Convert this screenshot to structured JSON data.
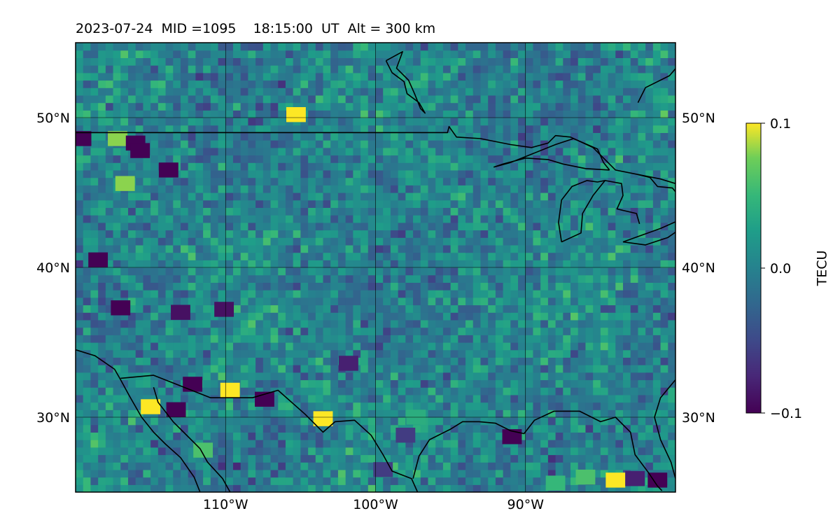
{
  "title": "2023-07-24  MID =1095    18:15:00  UT  Alt = 300 km",
  "map": {
    "lon_range": [
      -120,
      -80
    ],
    "lat_range": [
      25,
      55
    ],
    "lon_ticks": [
      {
        "value": -110,
        "label": "110°W"
      },
      {
        "value": -100,
        "label": "100°W"
      },
      {
        "value": -90,
        "label": "90°W"
      }
    ],
    "lat_ticks": [
      {
        "value": 30,
        "label": "30°N"
      },
      {
        "value": 40,
        "label": "40°N"
      },
      {
        "value": 50,
        "label": "50°N"
      }
    ],
    "grid": true,
    "colormap": "viridis"
  },
  "colorbar": {
    "label": "TECU",
    "min": -0.1,
    "max": 0.1,
    "ticks": [
      {
        "value": 0.1,
        "label": "0.1"
      },
      {
        "value": 0.0,
        "label": "0.0"
      },
      {
        "value": -0.1,
        "label": "−0.1"
      }
    ]
  },
  "highlights": [
    {
      "lon": -105.3,
      "lat": 50.2,
      "tec": 0.1
    },
    {
      "lon": -115.0,
      "lat": 30.7,
      "tec": 0.1
    },
    {
      "lon": -113.3,
      "lat": 30.5,
      "tec": -0.1
    },
    {
      "lon": -112.2,
      "lat": 32.2,
      "tec": -0.1
    },
    {
      "lon": -109.7,
      "lat": 31.8,
      "tec": 0.1
    },
    {
      "lon": -107.4,
      "lat": 31.2,
      "tec": -0.1
    },
    {
      "lon": -103.5,
      "lat": 29.9,
      "tec": 0.1
    },
    {
      "lon": -111.5,
      "lat": 27.8,
      "tec": 0.06
    },
    {
      "lon": -117.2,
      "lat": 48.6,
      "tec": 0.08
    },
    {
      "lon": -116.7,
      "lat": 45.6,
      "tec": 0.08
    },
    {
      "lon": -119.6,
      "lat": 48.6,
      "tec": -0.1
    },
    {
      "lon": -116.0,
      "lat": 48.3,
      "tec": -0.1
    },
    {
      "lon": -115.7,
      "lat": 47.8,
      "tec": -0.1
    },
    {
      "lon": -113.8,
      "lat": 46.5,
      "tec": -0.1
    },
    {
      "lon": -118.5,
      "lat": 40.5,
      "tec": -0.1
    },
    {
      "lon": -117.0,
      "lat": 37.3,
      "tec": -0.1
    },
    {
      "lon": -113.0,
      "lat": 37.0,
      "tec": -0.09
    },
    {
      "lon": -110.1,
      "lat": 37.2,
      "tec": -0.09
    },
    {
      "lon": -90.9,
      "lat": 28.7,
      "tec": -0.1
    },
    {
      "lon": -84.0,
      "lat": 25.8,
      "tec": 0.1
    },
    {
      "lon": -81.2,
      "lat": 25.8,
      "tec": -0.1
    },
    {
      "lon": -82.7,
      "lat": 25.9,
      "tec": -0.08
    },
    {
      "lon": -97.3,
      "lat": 30.0,
      "tec": 0.04
    },
    {
      "lon": -86.0,
      "lat": 26.0,
      "tec": 0.06
    },
    {
      "lon": -88.0,
      "lat": 25.6,
      "tec": 0.05
    },
    {
      "lon": -101.8,
      "lat": 33.6,
      "tec": -0.08
    },
    {
      "lon": -98.0,
      "lat": 28.8,
      "tec": -0.06
    },
    {
      "lon": -99.5,
      "lat": 26.5,
      "tec": -0.06
    }
  ],
  "coastlines": [
    [
      [
        -120,
        34.5
      ],
      [
        -118.7,
        34.1
      ],
      [
        -117.4,
        33.2
      ],
      [
        -117.0,
        32.5
      ],
      [
        -116.4,
        31.4
      ],
      [
        -115.6,
        30.0
      ],
      [
        -114.8,
        29.0
      ],
      [
        -114.0,
        28.2
      ],
      [
        -113.0,
        27.3
      ],
      [
        -112.1,
        26.0
      ],
      [
        -111.7,
        25.0
      ]
    ],
    [
      [
        -114.8,
        32.0
      ],
      [
        -114.5,
        31.0
      ],
      [
        -113.5,
        29.7
      ],
      [
        -112.7,
        28.9
      ],
      [
        -111.7,
        27.9
      ],
      [
        -111.2,
        27.0
      ],
      [
        -110.2,
        25.9
      ],
      [
        -109.7,
        25.0
      ]
    ],
    [
      [
        -117.0,
        32.6
      ],
      [
        -114.8,
        32.8
      ],
      [
        -111.0,
        31.3
      ],
      [
        -108.2,
        31.3
      ],
      [
        -106.5,
        31.8
      ],
      [
        -104.7,
        30.2
      ],
      [
        -103.5,
        29.0
      ],
      [
        -102.7,
        29.7
      ],
      [
        -101.4,
        29.8
      ],
      [
        -100.3,
        28.8
      ],
      [
        -99.5,
        27.5
      ],
      [
        -98.9,
        26.4
      ],
      [
        -97.6,
        25.9
      ],
      [
        -97.2,
        25.0
      ]
    ],
    [
      [
        -97.5,
        25.9
      ],
      [
        -97.1,
        27.4
      ],
      [
        -96.4,
        28.5
      ],
      [
        -95.0,
        29.2
      ],
      [
        -94.2,
        29.7
      ],
      [
        -93.1,
        29.7
      ],
      [
        -92.0,
        29.6
      ],
      [
        -91.0,
        29.1
      ],
      [
        -90.1,
        28.9
      ],
      [
        -89.4,
        29.8
      ],
      [
        -88.1,
        30.4
      ],
      [
        -86.4,
        30.4
      ],
      [
        -85.0,
        29.7
      ],
      [
        -84.0,
        30.0
      ],
      [
        -83.0,
        29.0
      ],
      [
        -82.7,
        27.5
      ],
      [
        -81.8,
        26.3
      ],
      [
        -81.2,
        25.4
      ],
      [
        -80.9,
        25.1
      ]
    ],
    [
      [
        -80.0,
        32.5
      ],
      [
        -81.0,
        31.3
      ],
      [
        -81.4,
        30.0
      ],
      [
        -81.0,
        28.5
      ],
      [
        -80.3,
        27.0
      ],
      [
        -80.0,
        25.9
      ]
    ],
    [
      [
        -123.0,
        49.0
      ],
      [
        -95.2,
        49.0
      ],
      [
        -95.1,
        49.4
      ],
      [
        -94.6,
        48.7
      ],
      [
        -93.0,
        48.6
      ],
      [
        -91.0,
        48.2
      ],
      [
        -89.6,
        48.0
      ],
      [
        -88.5,
        48.3
      ],
      [
        -88.0,
        48.8
      ],
      [
        -87.0,
        48.7
      ],
      [
        -85.5,
        48.0
      ],
      [
        -84.8,
        47.3
      ],
      [
        -84.0,
        46.5
      ],
      [
        -82.5,
        46.2
      ],
      [
        -81.0,
        45.9
      ],
      [
        -80.0,
        45.6
      ]
    ],
    [
      [
        -84.4,
        46.5
      ],
      [
        -86.0,
        46.6
      ],
      [
        -87.5,
        46.9
      ],
      [
        -88.5,
        47.2
      ],
      [
        -90.0,
        47.3
      ],
      [
        -91.5,
        46.9
      ],
      [
        -92.1,
        46.7
      ],
      [
        -91.0,
        47.0
      ],
      [
        -89.5,
        47.6
      ],
      [
        -88.0,
        48.2
      ],
      [
        -86.8,
        48.6
      ],
      [
        -85.2,
        47.9
      ],
      [
        -84.8,
        47.0
      ],
      [
        -84.4,
        46.5
      ]
    ],
    [
      [
        -87.6,
        41.7
      ],
      [
        -87.8,
        43.0
      ],
      [
        -87.6,
        44.5
      ],
      [
        -86.9,
        45.4
      ],
      [
        -85.9,
        45.8
      ],
      [
        -85.2,
        45.7
      ],
      [
        -84.7,
        45.8
      ],
      [
        -85.5,
        44.8
      ],
      [
        -86.2,
        43.6
      ],
      [
        -86.3,
        42.3
      ],
      [
        -87.6,
        41.7
      ]
    ],
    [
      [
        -84.7,
        45.8
      ],
      [
        -83.6,
        45.6
      ],
      [
        -83.5,
        44.8
      ],
      [
        -83.9,
        43.9
      ],
      [
        -82.6,
        43.6
      ],
      [
        -82.4,
        42.9
      ]
    ],
    [
      [
        -82.5,
        46.2
      ],
      [
        -81.7,
        46.0
      ],
      [
        -81.2,
        45.4
      ],
      [
        -80.2,
        45.3
      ],
      [
        -79.8,
        44.8
      ]
    ],
    [
      [
        -83.5,
        41.7
      ],
      [
        -82.0,
        41.5
      ],
      [
        -80.5,
        42.0
      ],
      [
        -79.5,
        42.7
      ]
    ],
    [
      [
        -83.5,
        41.7
      ],
      [
        -82.4,
        42.1
      ],
      [
        -81.0,
        42.6
      ],
      [
        -79.2,
        43.4
      ],
      [
        -78.0,
        43.8
      ]
    ],
    [
      [
        -79.8,
        55.0
      ],
      [
        -79.8,
        53.5
      ],
      [
        -80.4,
        52.8
      ],
      [
        -82.0,
        52.0
      ],
      [
        -82.5,
        51.0
      ]
    ],
    [
      [
        -99.3,
        53.8
      ],
      [
        -98.2,
        54.4
      ],
      [
        -98.6,
        53.3
      ],
      [
        -97.8,
        52.5
      ],
      [
        -97.4,
        51.6
      ],
      [
        -97.0,
        50.6
      ],
      [
        -96.7,
        50.3
      ],
      [
        -97.1,
        51.0
      ],
      [
        -97.9,
        51.6
      ],
      [
        -98.1,
        52.4
      ],
      [
        -98.9,
        53.0
      ],
      [
        -99.2,
        53.6
      ],
      [
        -99.3,
        53.8
      ]
    ]
  ]
}
